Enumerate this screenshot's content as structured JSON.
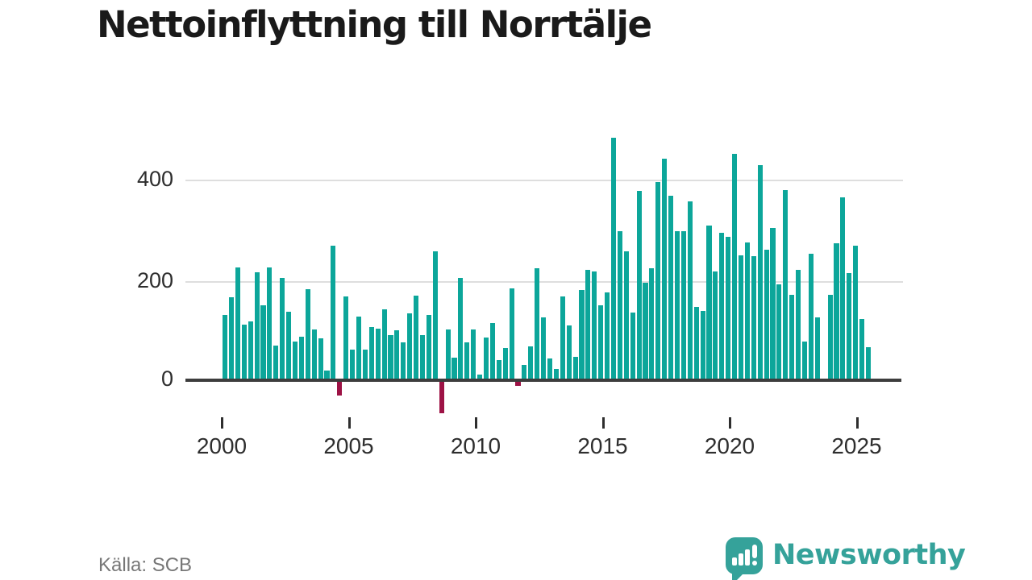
{
  "title": "Nettoinflyttning till Norrtälje",
  "source": "Källa: SCB",
  "branding": {
    "name": "Newsworthy",
    "logo_icon": "bar-chart-speech-bubble-exclamation-icon",
    "brand_color": "#35a29a"
  },
  "colors": {
    "positive_bar": "#0ca69a",
    "negative_bar": "#9d1245",
    "axis": "#3d3d3d",
    "gridline": "#dedede",
    "tick_label": "#2e2e2e",
    "source_text": "#777777",
    "title_text": "#1a1a1a"
  },
  "y_axis": {
    "ticks": [
      "0",
      "200",
      "400"
    ]
  },
  "x_axis": {
    "ticks": [
      "2000",
      "2005",
      "2010",
      "2015",
      "2020",
      "2025"
    ]
  },
  "chart_data": {
    "type": "bar",
    "title": "Nettoinflyttning till Norrtälje",
    "xlabel": "",
    "ylabel": "",
    "frequency": "quarterly",
    "x_start": "2000Q1",
    "x_end": "2025Q2",
    "x_tick_labels": [
      "2000",
      "2005",
      "2010",
      "2015",
      "2020",
      "2025"
    ],
    "y_tick_labels": [
      "0",
      "200",
      "400"
    ],
    "ylim": [
      -80,
      510
    ],
    "grid": "horizontal",
    "legend": "none",
    "x": [
      "2000Q1",
      "2000Q2",
      "2000Q3",
      "2000Q4",
      "2001Q1",
      "2001Q2",
      "2001Q3",
      "2001Q4",
      "2002Q1",
      "2002Q2",
      "2002Q3",
      "2002Q4",
      "2003Q1",
      "2003Q2",
      "2003Q3",
      "2003Q4",
      "2004Q1",
      "2004Q2",
      "2004Q3",
      "2004Q4",
      "2005Q1",
      "2005Q2",
      "2005Q3",
      "2005Q4",
      "2006Q1",
      "2006Q2",
      "2006Q3",
      "2006Q4",
      "2007Q1",
      "2007Q2",
      "2007Q3",
      "2007Q4",
      "2008Q1",
      "2008Q2",
      "2008Q3",
      "2008Q4",
      "2009Q1",
      "2009Q2",
      "2009Q3",
      "2009Q4",
      "2010Q1",
      "2010Q2",
      "2010Q3",
      "2010Q4",
      "2011Q1",
      "2011Q2",
      "2011Q3",
      "2011Q4",
      "2012Q1",
      "2012Q2",
      "2012Q3",
      "2012Q4",
      "2013Q1",
      "2013Q2",
      "2013Q3",
      "2013Q4",
      "2014Q1",
      "2014Q2",
      "2014Q3",
      "2014Q4",
      "2015Q1",
      "2015Q2",
      "2015Q3",
      "2015Q4",
      "2016Q1",
      "2016Q2",
      "2016Q3",
      "2016Q4",
      "2017Q1",
      "2017Q2",
      "2017Q3",
      "2017Q4",
      "2018Q1",
      "2018Q2",
      "2018Q3",
      "2018Q4",
      "2019Q1",
      "2019Q2",
      "2019Q3",
      "2019Q4",
      "2020Q1",
      "2020Q2",
      "2020Q3",
      "2020Q4",
      "2021Q1",
      "2021Q2",
      "2021Q3",
      "2021Q4",
      "2022Q1",
      "2022Q2",
      "2022Q3",
      "2022Q4",
      "2023Q1",
      "2023Q2",
      "2023Q3",
      "2023Q4",
      "2024Q1",
      "2024Q2",
      "2024Q3",
      "2024Q4",
      "2025Q1",
      "2025Q2"
    ],
    "values": [
      130,
      166,
      225,
      111,
      118,
      216,
      150,
      225,
      69,
      204,
      137,
      78,
      87,
      182,
      102,
      83,
      19,
      268,
      -29,
      168,
      61,
      127,
      61,
      106,
      103,
      141,
      90,
      99,
      75,
      134,
      169,
      90,
      131,
      257,
      -65,
      101,
      45,
      205,
      75,
      101,
      11,
      85,
      114,
      40,
      65,
      184,
      -9,
      31,
      67,
      223,
      125,
      43,
      22,
      167,
      109,
      47,
      180,
      220,
      218,
      150,
      176,
      485,
      297,
      258,
      136,
      378,
      195,
      224,
      396,
      443,
      369,
      297,
      297,
      358,
      147,
      139,
      309,
      217,
      295,
      287,
      452,
      250,
      275,
      248,
      429,
      261,
      304,
      192,
      380,
      171,
      220,
      78,
      252,
      126,
      2,
      171,
      273,
      366,
      214,
      268,
      123,
      66
    ],
    "positive_color": "#0ca69a",
    "negative_color": "#9d1245"
  }
}
